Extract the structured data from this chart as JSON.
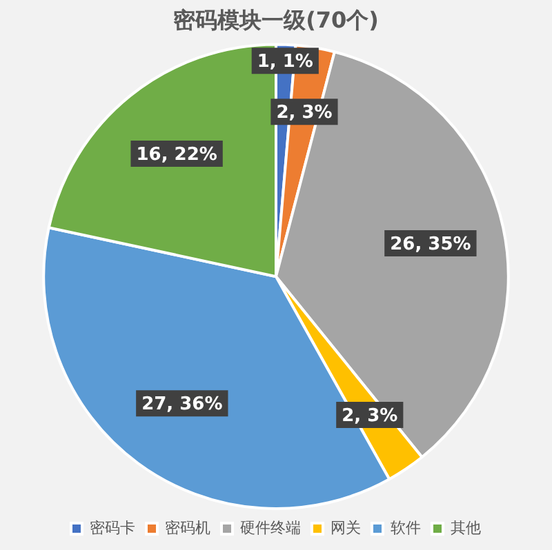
{
  "chart_data": {
    "type": "pie",
    "title": "密码模块一级(70个)",
    "categories": [
      "密码卡",
      "密码机",
      "硬件终端",
      "网关",
      "软件",
      "其他"
    ],
    "values": [
      1,
      2,
      26,
      2,
      27,
      16
    ],
    "colors": [
      "#4472c4",
      "#ed7d31",
      "#a5a5a5",
      "#ffc000",
      "#5b9bd5",
      "#70ad47"
    ],
    "value_labels": [
      "1, 1%",
      "2, 3%",
      "26, 35%",
      "2, 3%",
      "27, 36%",
      "16, 22%"
    ],
    "legend": "bottom"
  }
}
